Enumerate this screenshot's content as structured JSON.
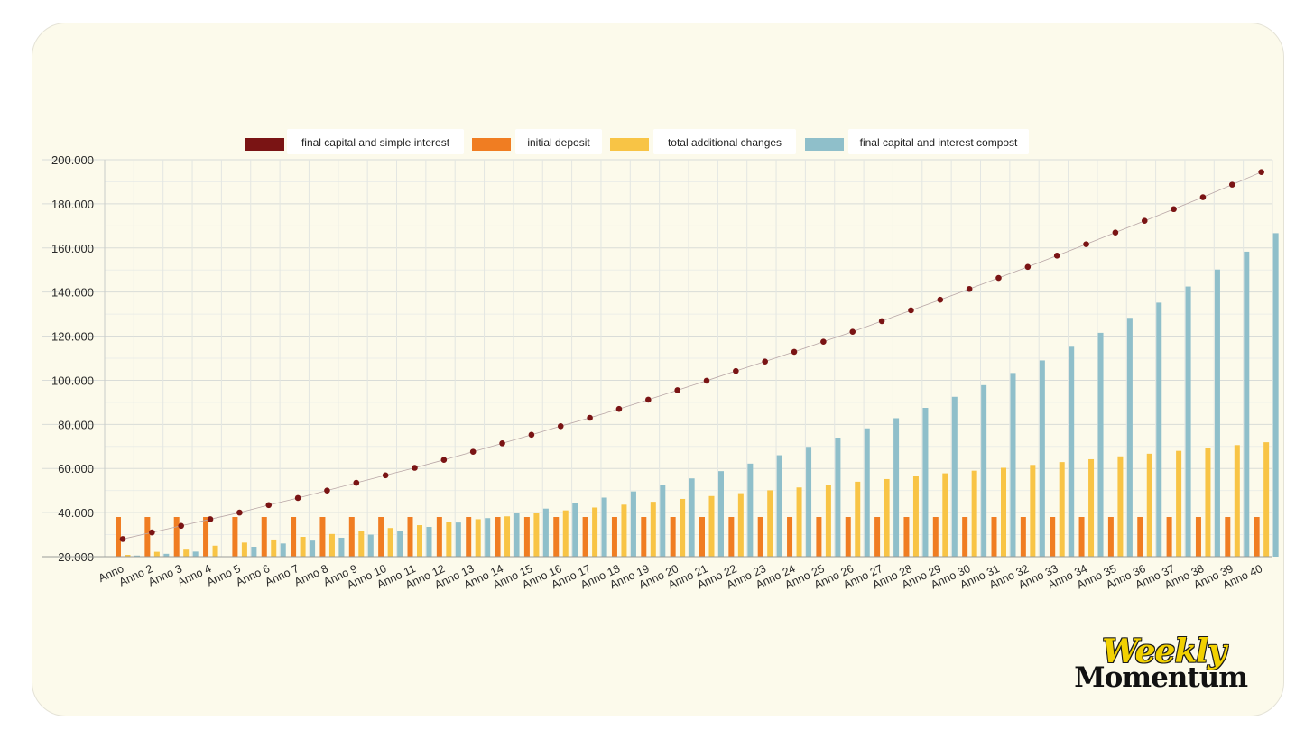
{
  "colors": {
    "simple": "#7a1414",
    "deposit": "#f07d22",
    "additional": "#f8c445",
    "compound": "#8fbfca",
    "brand_yellow": "#f2d100"
  },
  "brand": {
    "line1": "Weekly",
    "line2": "Momentum"
  },
  "chart_data": {
    "type": "bar",
    "title": "",
    "xlabel": "",
    "ylabel": "",
    "ylim": [
      20000,
      200000
    ],
    "yticks": [
      "20.000",
      "40.000",
      "60.000",
      "80.000",
      "100.000",
      "120.000",
      "140.000",
      "160.000",
      "180.000",
      "200.000"
    ],
    "grid": true,
    "legend_position": "top",
    "categories": [
      "Anno",
      "Anno 2",
      "Anno 3",
      "Anno 4",
      "Anno 5",
      "Anno 6",
      "Anno 7",
      "Anno 8",
      "Anno 9",
      "Anno 10",
      "Anno 11",
      "Anno 12",
      "Anno 13",
      "Anno 14",
      "Anno 15",
      "Anno 16",
      "Anno 17",
      "Anno 18",
      "Anno 19",
      "Anno 20",
      "Anno 21",
      "Anno 22",
      "Anno 23",
      "Anno 24",
      "Anno 25",
      "Anno 26",
      "Anno 27",
      "Anno 28",
      "Anno 29",
      "Anno 30",
      "Anno 31",
      "Anno 32",
      "Anno 33",
      "Anno 34",
      "Anno 35",
      "Anno 36",
      "Anno 37",
      "Anno 38",
      "Anno 39",
      "Anno 40"
    ],
    "series": [
      {
        "name": "final capital and simple interest",
        "kind": "scatter",
        "color": "#7a1414",
        "values": [
          28000,
          31000,
          34000,
          37000,
          40000,
          43400,
          46600,
          50000,
          53500,
          56900,
          60300,
          63900,
          67600,
          71400,
          75300,
          79200,
          83000,
          87000,
          91200,
          95500,
          99800,
          104200,
          108500,
          112900,
          117500,
          122000,
          126800,
          131700,
          136500,
          141400,
          146400,
          151400,
          156500,
          161700,
          167000,
          172300,
          177600,
          183000,
          188700,
          194400
        ]
      },
      {
        "name": "initial deposit",
        "kind": "bar",
        "color": "#f07d22",
        "values": [
          38000,
          38000,
          38000,
          38000,
          38000,
          38000,
          38000,
          38000,
          38000,
          38000,
          38000,
          38000,
          38000,
          38000,
          38000,
          38000,
          38000,
          38000,
          38000,
          38000,
          38000,
          38000,
          38000,
          38000,
          38000,
          38000,
          38000,
          38000,
          38000,
          38000,
          38000,
          38000,
          38000,
          38000,
          38000,
          38000,
          38000,
          38000,
          38000,
          38000
        ]
      },
      {
        "name": "total additional changes",
        "kind": "bar",
        "color": "#f8c445",
        "values": [
          20800,
          22200,
          23600,
          25000,
          26400,
          27800,
          29000,
          30300,
          31600,
          33000,
          34300,
          35700,
          37000,
          38300,
          39700,
          41000,
          42300,
          43600,
          44900,
          46200,
          47500,
          48800,
          50100,
          51400,
          52700,
          54000,
          55200,
          56500,
          57800,
          59000,
          60300,
          61600,
          62900,
          64200,
          65500,
          66700,
          68000,
          69300,
          70600,
          71900
        ]
      },
      {
        "name": "final capital and interest compost",
        "kind": "bar",
        "color": "#8fbfca",
        "values": [
          20500,
          21300,
          22300,
          20200,
          24500,
          26000,
          27300,
          28600,
          30000,
          31600,
          33500,
          35500,
          37500,
          39800,
          41800,
          44300,
          46800,
          49600,
          52500,
          55500,
          58800,
          62200,
          66000,
          69800,
          74000,
          78200,
          82800,
          87500,
          92500,
          97800,
          103300,
          109000,
          115200,
          121500,
          128300,
          135200,
          142500,
          150200,
          158300,
          166700
        ]
      }
    ]
  }
}
